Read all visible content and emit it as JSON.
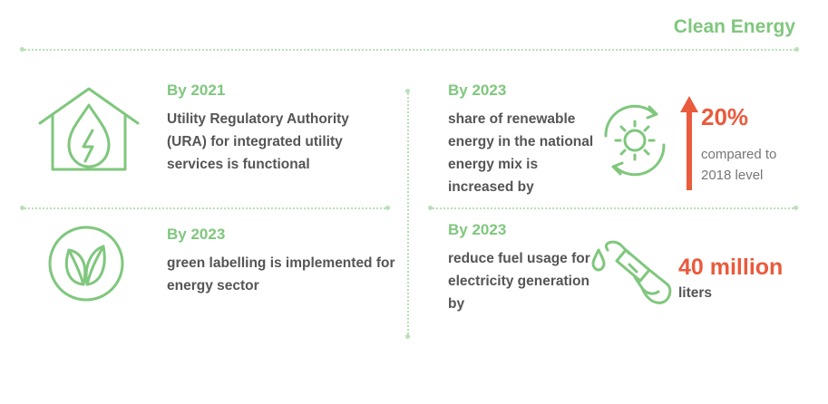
{
  "header": {
    "title": "Clean Energy"
  },
  "items": [
    {
      "year": "By 2021",
      "text": "Utility Regulatory Authority (URA) for integrated utility services is functional",
      "icon": "house-energy-drop-icon"
    },
    {
      "year": "By 2023",
      "text": "green labelling is implemented for energy sector",
      "icon": "leaf-circle-icon"
    },
    {
      "year": "By 2023",
      "text": "share of renewable energy in the national energy mix is increased by",
      "icon": "sun-cycle-icon",
      "value": "20%",
      "value_note": "compared to 2018 level",
      "trend": "up-arrow-icon"
    },
    {
      "year": "By 2023",
      "text": "reduce fuel usage for electricity generation by",
      "icon": "fuel-nozzle-icon",
      "value": "40 million",
      "value_note": "liters"
    }
  ],
  "colors": {
    "accent": "#7fc77d",
    "highlight": "#ea5a3c",
    "text": "#555555",
    "divider": "#b9dfb6"
  }
}
